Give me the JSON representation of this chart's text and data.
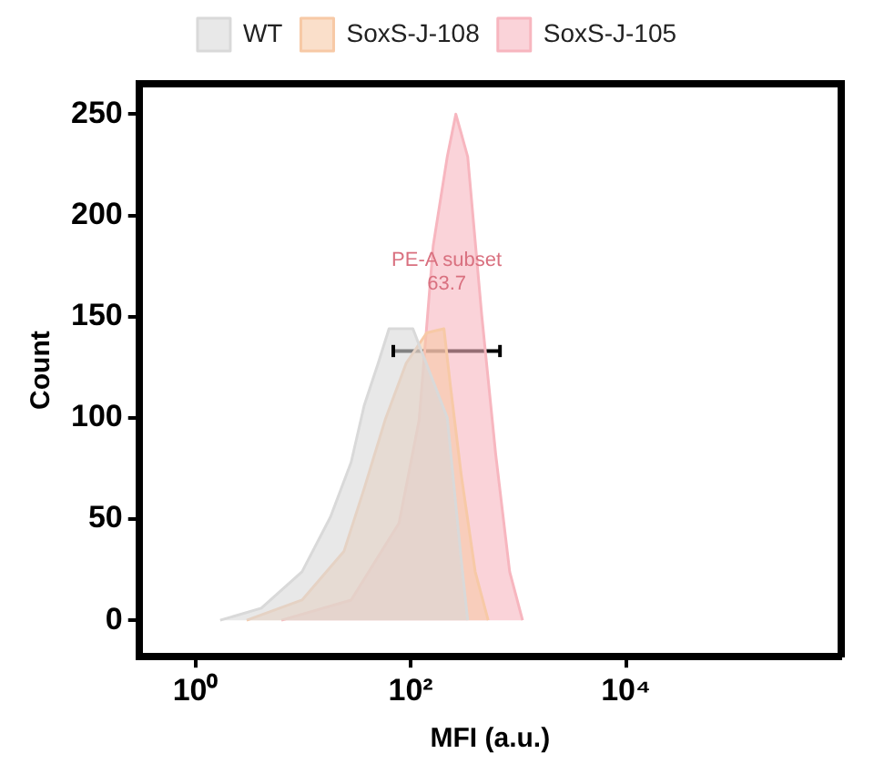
{
  "chart_data": {
    "type": "area",
    "xlabel": "MFI (a.u.)",
    "ylabel": "Count",
    "log": "x",
    "xlim": [
      0.3,
      1000000
    ],
    "xticks": [
      {
        "value": 1,
        "label": "10⁰"
      },
      {
        "value": 100,
        "label": "10²"
      },
      {
        "value": 10000,
        "label": "10⁴"
      }
    ],
    "ylim": [
      -18,
      265
    ],
    "yticks": [
      0,
      50,
      100,
      150,
      200,
      250
    ],
    "grid": false,
    "legend": "top",
    "series": [
      {
        "name": "WT",
        "color": "#d9d9d9",
        "x": [
          1.7,
          4.1,
          9.8,
          18,
          28,
          37,
          50,
          63,
          105,
          219,
          295,
          339
        ],
        "values": [
          0,
          6,
          24,
          51,
          78,
          106,
          127,
          144,
          144,
          100,
          30,
          0
        ]
      },
      {
        "name": "SoxS-J-108",
        "color": "#f7c9a6",
        "x": [
          3,
          9.8,
          24,
          37,
          58,
          91,
          141,
          204,
          234,
          295,
          398,
          525
        ],
        "values": [
          0,
          10,
          34,
          65,
          99,
          127,
          142,
          144,
          116,
          72,
          24,
          0
        ]
      },
      {
        "name": "SoxS-J-105",
        "color": "#f7b6bf",
        "x": [
          6.3,
          28,
          78,
          120,
          162,
          219,
          263,
          339,
          457,
          617,
          832,
          1096
        ],
        "values": [
          0,
          10,
          48,
          99,
          185,
          229,
          250,
          229,
          151,
          82,
          24,
          0
        ]
      },
      {
        "type": "line",
        "color": "#000000",
        "x": [
          69,
          676
        ],
        "values": [
          133,
          133
        ],
        "errors": [
          3,
          3
        ]
      }
    ],
    "annotations": [
      "PE-A subset",
      "63.7"
    ]
  }
}
